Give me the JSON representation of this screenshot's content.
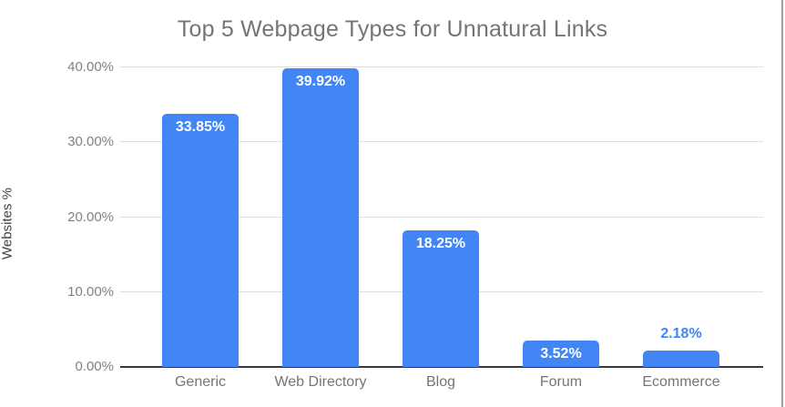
{
  "chart_data": {
    "type": "bar",
    "title": "Top 5 Webpage Types for Unnatural Links",
    "ylabel": "Websites %",
    "xlabel": "",
    "categories": [
      "Generic",
      "Web Directory",
      "Blog",
      "Forum",
      "Ecommerce"
    ],
    "values": [
      33.85,
      39.92,
      18.25,
      3.52,
      2.18
    ],
    "data_labels": [
      "33.85%",
      "39.92%",
      "18.25%",
      "3.52%",
      "2.18%"
    ],
    "yticks": [
      {
        "value": 0,
        "label": "0.00%"
      },
      {
        "value": 10,
        "label": "10.00%"
      },
      {
        "value": 20,
        "label": "20.00%"
      },
      {
        "value": 30,
        "label": "30.00%"
      },
      {
        "value": 40,
        "label": "40.00%"
      }
    ],
    "ylim": [
      0,
      40
    ],
    "grid": true,
    "legend": "none",
    "label_placement_threshold": 3,
    "colors": {
      "bar": "#4285f4",
      "label_inside": "#ffffff",
      "label_outside": "#4285f4",
      "title_text": "#757575",
      "axis_title_text": "#424242",
      "tick_text": "#818181",
      "gridline": "#dedede",
      "baseline": "#383838",
      "window_edge": "#9e9e9e"
    }
  }
}
